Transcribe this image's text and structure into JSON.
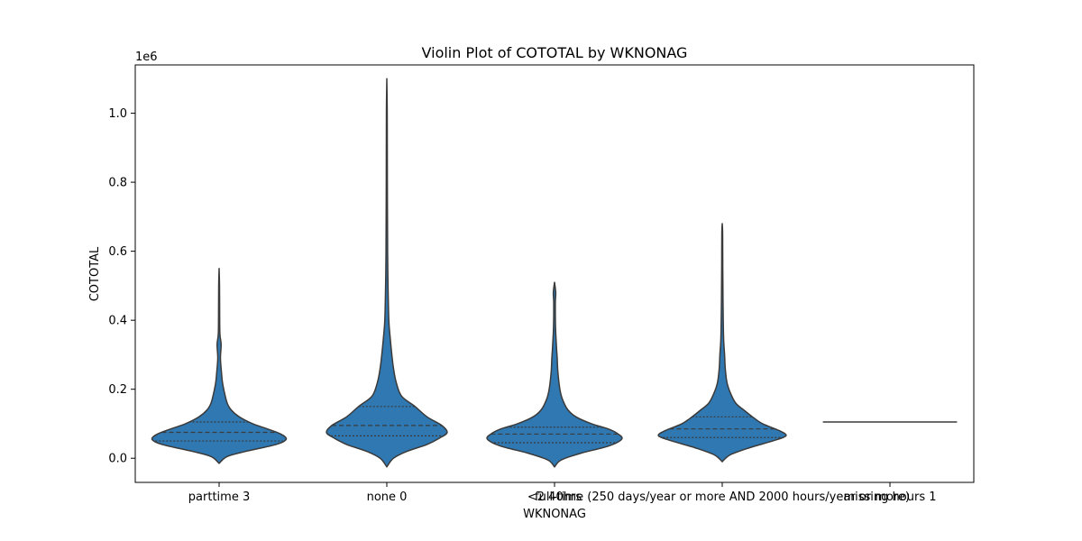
{
  "chart_data": {
    "type": "violin",
    "title": "Violin Plot of COTOTAL by WKNONAG",
    "xlabel": "WKNONAG",
    "ylabel": "COTOTAL",
    "y_offset_label": "1e6",
    "ylim": [
      -70000,
      1140000
    ],
    "yticks": [
      0.0,
      0.2,
      0.4,
      0.6,
      0.8,
      1.0
    ],
    "ytick_labels": [
      "0.0",
      "0.2",
      "0.4",
      "0.6",
      "0.8",
      "1.0"
    ],
    "y_multiplier": 1000000,
    "color": "#2f78b2",
    "edge_color": "#3a3a3a",
    "categories": [
      "parttime 3",
      "none 0",
      "<2 40hrs",
      "full-time (250 days/year or more AND 2000 hours/year or more)",
      "missing hours 1"
    ],
    "violins": [
      {
        "name": "parttime 3",
        "min": -15000,
        "max": 550000,
        "q1": 50000,
        "median": 75000,
        "q3": 105000,
        "profile": [
          [
            -15000,
            0.0
          ],
          [
            5000,
            0.12
          ],
          [
            20000,
            0.4
          ],
          [
            40000,
            0.85
          ],
          [
            55000,
            1.0
          ],
          [
            70000,
            0.92
          ],
          [
            85000,
            0.72
          ],
          [
            100000,
            0.5
          ],
          [
            120000,
            0.3
          ],
          [
            140000,
            0.18
          ],
          [
            160000,
            0.12
          ],
          [
            190000,
            0.08
          ],
          [
            220000,
            0.05
          ],
          [
            250000,
            0.035
          ],
          [
            290000,
            0.02
          ],
          [
            330000,
            0.03
          ],
          [
            360000,
            0.012
          ],
          [
            420000,
            0.008
          ],
          [
            500000,
            0.006
          ],
          [
            550000,
            0.0
          ]
        ]
      },
      {
        "name": "none 0",
        "min": -25000,
        "max": 1100000,
        "q1": 65000,
        "median": 95000,
        "q3": 150000,
        "profile": [
          [
            -25000,
            0.0
          ],
          [
            0,
            0.1
          ],
          [
            20000,
            0.3
          ],
          [
            40000,
            0.6
          ],
          [
            60000,
            0.8
          ],
          [
            75000,
            0.9
          ],
          [
            95000,
            0.82
          ],
          [
            120000,
            0.6
          ],
          [
            150000,
            0.42
          ],
          [
            180000,
            0.22
          ],
          [
            220000,
            0.14
          ],
          [
            260000,
            0.1
          ],
          [
            300000,
            0.075
          ],
          [
            350000,
            0.05
          ],
          [
            400000,
            0.03
          ],
          [
            500000,
            0.018
          ],
          [
            600000,
            0.012
          ],
          [
            800000,
            0.008
          ],
          [
            1000000,
            0.006
          ],
          [
            1100000,
            0.0
          ]
        ]
      },
      {
        "name": "<2 40hrs",
        "min": -25000,
        "max": 510000,
        "q1": 45000,
        "median": 70000,
        "q3": 90000,
        "profile": [
          [
            -25000,
            0.0
          ],
          [
            -5000,
            0.1
          ],
          [
            15000,
            0.4
          ],
          [
            35000,
            0.8
          ],
          [
            55000,
            1.0
          ],
          [
            70000,
            0.95
          ],
          [
            85000,
            0.8
          ],
          [
            100000,
            0.55
          ],
          [
            120000,
            0.32
          ],
          [
            140000,
            0.2
          ],
          [
            170000,
            0.12
          ],
          [
            200000,
            0.08
          ],
          [
            250000,
            0.05
          ],
          [
            290000,
            0.04
          ],
          [
            320000,
            0.03
          ],
          [
            380000,
            0.015
          ],
          [
            450000,
            0.012
          ],
          [
            480000,
            0.018
          ],
          [
            510000,
            0.0
          ]
        ]
      },
      {
        "name": "full-time (250 days/year or more AND 2000 hours/year or more)",
        "min": -10000,
        "max": 680000,
        "q1": 60000,
        "median": 85000,
        "q3": 120000,
        "profile": [
          [
            -10000,
            0.0
          ],
          [
            10000,
            0.12
          ],
          [
            30000,
            0.4
          ],
          [
            50000,
            0.75
          ],
          [
            65000,
            0.95
          ],
          [
            80000,
            0.85
          ],
          [
            100000,
            0.6
          ],
          [
            120000,
            0.45
          ],
          [
            140000,
            0.32
          ],
          [
            160000,
            0.2
          ],
          [
            190000,
            0.12
          ],
          [
            220000,
            0.07
          ],
          [
            260000,
            0.045
          ],
          [
            300000,
            0.035
          ],
          [
            350000,
            0.02
          ],
          [
            450000,
            0.012
          ],
          [
            550000,
            0.008
          ],
          [
            650000,
            0.006
          ],
          [
            680000,
            0.0
          ]
        ]
      },
      {
        "name": "missing hours 1",
        "single_value": 105000
      }
    ]
  }
}
